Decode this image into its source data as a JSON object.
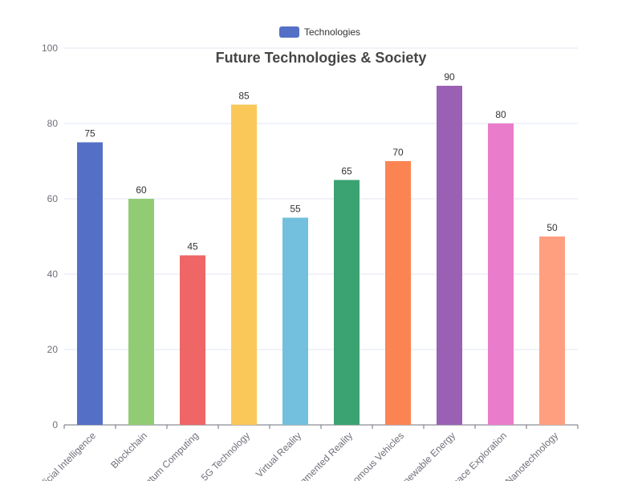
{
  "chart_data": {
    "type": "bar",
    "title": "Future Technologies & Society",
    "legend": {
      "label": "Technologies",
      "color": "#5470c6",
      "placement": "top-center"
    },
    "categories": [
      "Artificial Intelligence",
      "Blockchain",
      "Quantum Computing",
      "5G Technology",
      "Virtual Reality",
      "Augmented Reality",
      "Autonomous Vehicles",
      "Renewable Energy",
      "Space Exploration",
      "Nanotechnology"
    ],
    "series": [
      {
        "name": "Technologies",
        "values": [
          75,
          60,
          45,
          85,
          55,
          65,
          70,
          90,
          80,
          50
        ]
      }
    ],
    "colors": [
      "#5470c6",
      "#91cc75",
      "#ee6666",
      "#fac858",
      "#73c0de",
      "#3ba272",
      "#fc8452",
      "#9a60b4",
      "#ea7ccc",
      "#ff9f7f"
    ],
    "yticks": [
      0,
      20,
      40,
      60,
      80,
      100
    ],
    "ylim": [
      0,
      100
    ],
    "grid": true,
    "show_data_labels": true
  }
}
